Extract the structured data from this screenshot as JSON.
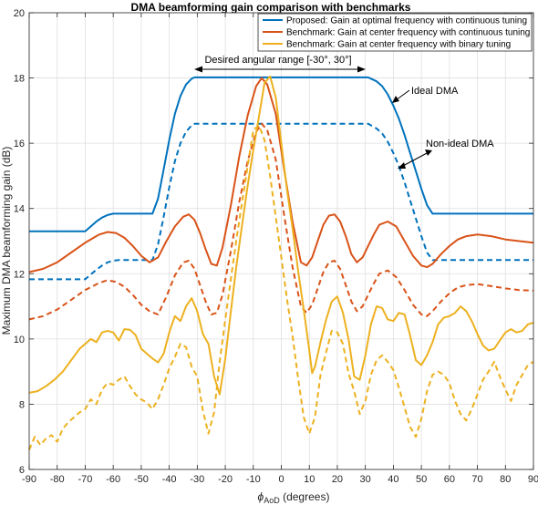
{
  "chart_data": {
    "type": "line",
    "title": "DMA beamforming gain comparison with benchmarks",
    "xlabel_main": "ϕ",
    "xlabel_sub": "AoD",
    "xlabel_unit": " (degrees)",
    "ylabel": "Maximum DMA beamforming gain (dB)",
    "xlim": [
      -90,
      90
    ],
    "ylim": [
      6,
      20
    ],
    "xticks": [
      -90,
      -80,
      -70,
      -60,
      -50,
      -40,
      -30,
      -20,
      -10,
      0,
      10,
      20,
      30,
      40,
      50,
      60,
      70,
      80,
      90
    ],
    "yticks": [
      6,
      8,
      10,
      12,
      14,
      16,
      18,
      20
    ],
    "grid": true,
    "legend_position": "top-right",
    "legend": [
      {
        "label": "Proposed: Gain at optimal frequency with continuous tuning",
        "color": "#0072BD"
      },
      {
        "label": "Benchmark: Gain at center frequency with continuous tuning",
        "color": "#D95319"
      },
      {
        "label": "Benchmark: Gain at center frequency with binary tuning",
        "color": "#EDB120"
      }
    ],
    "annotations": {
      "range": "Desired angular range [-30°, 30°]",
      "ideal": "Ideal DMA",
      "nonideal": "Non-ideal DMA"
    },
    "series": [
      {
        "color": "#0072BD",
        "style": "solid",
        "x": [
          -90,
          -70,
          -68,
          -66,
          -64,
          -62,
          -60,
          -58,
          -46,
          -44,
          -42,
          -40,
          -38,
          -36,
          -34,
          -32,
          -31,
          31,
          32,
          34,
          36,
          38,
          40,
          42,
          44,
          46,
          48,
          50,
          52,
          54,
          90
        ],
        "y": [
          13.3,
          13.3,
          13.45,
          13.6,
          13.72,
          13.8,
          13.84,
          13.84,
          13.84,
          14.3,
          15.2,
          16.1,
          16.9,
          17.45,
          17.8,
          17.98,
          18.02,
          18.02,
          17.98,
          17.9,
          17.75,
          17.5,
          17.15,
          16.75,
          16.25,
          15.7,
          15.15,
          14.6,
          14.1,
          13.84,
          13.84
        ]
      },
      {
        "color": "#0072BD",
        "style": "dashed",
        "x": [
          -90,
          -70,
          -68,
          -66,
          -64,
          -62,
          -60,
          -58,
          -46,
          -44,
          -42,
          -40,
          -38,
          -36,
          -34,
          -32,
          -31,
          31,
          32,
          34,
          36,
          38,
          40,
          42,
          44,
          46,
          48,
          50,
          52,
          54,
          90
        ],
        "y": [
          11.83,
          11.83,
          11.98,
          12.12,
          12.25,
          12.35,
          12.4,
          12.42,
          12.42,
          12.9,
          13.75,
          14.65,
          15.45,
          16.0,
          16.35,
          16.55,
          16.6,
          16.6,
          16.55,
          16.45,
          16.3,
          16.05,
          15.7,
          15.3,
          14.8,
          14.25,
          13.7,
          13.15,
          12.65,
          12.42,
          12.42
        ]
      },
      {
        "color": "#D95319",
        "style": "solid",
        "x": [
          -90,
          -85,
          -80,
          -75,
          -70,
          -65,
          -62,
          -59,
          -56,
          -53,
          -50,
          -47,
          -44,
          -41,
          -38,
          -35,
          -33,
          -31,
          -29,
          -27,
          -25,
          -23,
          -21,
          -18,
          -15,
          -12,
          -9,
          -7,
          -5,
          -2,
          1,
          4,
          7,
          9,
          11,
          13,
          15,
          17,
          19,
          21,
          23,
          25,
          27,
          29,
          31,
          33,
          35,
          38,
          41,
          44,
          47,
          50,
          52,
          54,
          57,
          60,
          63,
          66,
          70,
          75,
          80,
          85,
          90
        ],
        "y": [
          12.05,
          12.15,
          12.35,
          12.65,
          12.95,
          13.2,
          13.28,
          13.25,
          13.1,
          12.85,
          12.55,
          12.35,
          12.5,
          13.0,
          13.45,
          13.75,
          13.82,
          13.65,
          13.25,
          12.75,
          12.3,
          12.25,
          12.8,
          14.1,
          15.6,
          16.85,
          17.75,
          18.0,
          17.8,
          16.9,
          15.2,
          13.6,
          12.35,
          12.25,
          12.5,
          13.0,
          13.5,
          13.78,
          13.82,
          13.6,
          13.15,
          12.6,
          12.35,
          12.5,
          12.85,
          13.2,
          13.5,
          13.6,
          13.45,
          13.0,
          12.55,
          12.25,
          12.2,
          12.3,
          12.6,
          12.85,
          13.05,
          13.15,
          13.2,
          13.15,
          13.05,
          13.0,
          12.95
        ]
      },
      {
        "color": "#D95319",
        "style": "dashed",
        "x": [
          -90,
          -85,
          -80,
          -75,
          -70,
          -65,
          -62,
          -59,
          -56,
          -53,
          -50,
          -47,
          -44,
          -41,
          -38,
          -35,
          -33,
          -31,
          -29,
          -27,
          -25,
          -23,
          -21,
          -18,
          -15,
          -12,
          -9,
          -7,
          -5,
          -2,
          1,
          4,
          7,
          9,
          11,
          13,
          15,
          17,
          19,
          21,
          23,
          25,
          27,
          29,
          31,
          33,
          35,
          38,
          41,
          44,
          47,
          50,
          52,
          54,
          57,
          60,
          63,
          66,
          70,
          75,
          80,
          85,
          90
        ],
        "y": [
          10.6,
          10.7,
          10.9,
          11.2,
          11.5,
          11.72,
          11.8,
          11.75,
          11.6,
          11.35,
          11.05,
          10.85,
          10.75,
          11.3,
          11.95,
          12.35,
          12.4,
          12.15,
          11.65,
          11.15,
          10.75,
          10.8,
          11.35,
          12.7,
          14.2,
          15.45,
          16.35,
          16.6,
          16.4,
          15.5,
          13.8,
          12.2,
          11.0,
          10.8,
          11.05,
          11.55,
          12.05,
          12.35,
          12.4,
          12.15,
          11.65,
          11.15,
          10.85,
          11.0,
          11.35,
          11.7,
          12.0,
          12.1,
          11.9,
          11.5,
          11.05,
          10.75,
          10.7,
          10.85,
          11.15,
          11.4,
          11.58,
          11.65,
          11.68,
          11.62,
          11.55,
          11.5,
          11.48
        ]
      },
      {
        "color": "#EDB120",
        "style": "solid",
        "x": [
          -90,
          -87,
          -84,
          -81,
          -78,
          -75,
          -72,
          -70,
          -68,
          -66,
          -64,
          -62,
          -60,
          -58,
          -56,
          -54,
          -52,
          -50,
          -48,
          -46,
          -44,
          -42,
          -40,
          -38,
          -36,
          -34,
          -32,
          -30,
          -28,
          -26,
          -24,
          -22,
          -20,
          -18,
          -16,
          -14,
          -12,
          -10,
          -8,
          -6,
          -4,
          -2,
          0,
          2,
          4,
          6,
          8,
          10,
          11,
          12,
          14,
          16,
          18,
          20,
          22,
          24,
          26,
          28,
          30,
          32,
          34,
          36,
          38,
          40,
          42,
          44,
          46,
          48,
          50,
          52,
          54,
          56,
          58,
          60,
          62,
          64,
          66,
          68,
          70,
          72,
          74,
          76,
          78,
          80,
          82,
          84,
          86,
          88,
          90
        ],
        "y": [
          8.35,
          8.4,
          8.55,
          8.75,
          9.0,
          9.35,
          9.7,
          9.85,
          10.0,
          9.9,
          10.2,
          10.25,
          10.2,
          9.95,
          10.3,
          10.28,
          10.12,
          9.7,
          9.55,
          9.4,
          9.28,
          9.55,
          10.2,
          10.7,
          10.55,
          11.0,
          11.25,
          10.85,
          10.15,
          9.85,
          8.85,
          8.3,
          9.4,
          10.85,
          12.25,
          13.5,
          14.7,
          15.8,
          16.8,
          17.85,
          18.05,
          17.4,
          16.0,
          14.6,
          13.4,
          12.1,
          10.9,
          9.65,
          8.95,
          9.15,
          9.9,
          10.6,
          11.15,
          11.3,
          10.8,
          10.0,
          8.85,
          8.75,
          9.5,
          10.45,
          11.0,
          10.95,
          10.6,
          10.55,
          10.8,
          10.75,
          10.1,
          9.35,
          9.2,
          9.5,
          9.9,
          10.45,
          10.65,
          10.7,
          10.8,
          11.0,
          10.85,
          10.55,
          10.15,
          9.8,
          9.65,
          9.7,
          9.95,
          10.2,
          10.3,
          10.2,
          10.25,
          10.45,
          10.5
        ]
      },
      {
        "color": "#EDB120",
        "style": "dashed",
        "x": [
          -90,
          -88,
          -86,
          -84,
          -82,
          -80,
          -78,
          -76,
          -74,
          -72,
          -70,
          -68,
          -66,
          -64,
          -62,
          -60,
          -58,
          -56,
          -54,
          -52,
          -50,
          -48,
          -46,
          -44,
          -42,
          -40,
          -38,
          -36,
          -34,
          -32,
          -30,
          -28,
          -26,
          -24,
          -22,
          -20,
          -18,
          -16,
          -14,
          -12,
          -10,
          -8,
          -6,
          -4,
          -2,
          0,
          2,
          4,
          6,
          8,
          10,
          12,
          14,
          16,
          18,
          20,
          22,
          24,
          26,
          28,
          30,
          32,
          34,
          36,
          38,
          40,
          42,
          44,
          46,
          48,
          50,
          52,
          54,
          56,
          58,
          60,
          62,
          64,
          66,
          68,
          70,
          72,
          74,
          76,
          78,
          80,
          82,
          84,
          86,
          88,
          90
        ],
        "y": [
          6.6,
          7.0,
          6.75,
          6.95,
          7.05,
          6.85,
          7.25,
          7.45,
          7.6,
          7.75,
          7.85,
          8.15,
          8.0,
          8.45,
          8.65,
          8.6,
          8.75,
          8.85,
          8.55,
          8.3,
          8.15,
          8.05,
          7.85,
          8.15,
          8.6,
          9.1,
          9.45,
          9.85,
          9.75,
          9.15,
          8.85,
          7.8,
          7.1,
          7.75,
          9.3,
          10.6,
          11.85,
          13.05,
          14.2,
          15.3,
          16.4,
          16.55,
          16.1,
          15.0,
          13.75,
          12.5,
          11.25,
          10.1,
          8.8,
          7.6,
          7.1,
          7.6,
          8.9,
          9.6,
          10.25,
          10.2,
          9.85,
          8.95,
          8.4,
          7.7,
          8.1,
          8.9,
          9.35,
          9.5,
          9.3,
          9.05,
          8.5,
          7.9,
          7.3,
          7.0,
          7.55,
          8.4,
          8.9,
          9.0,
          8.9,
          8.65,
          8.1,
          7.7,
          7.5,
          7.85,
          8.3,
          8.75,
          9.0,
          9.3,
          8.85,
          8.45,
          8.1,
          8.6,
          8.9,
          9.2,
          9.3
        ]
      }
    ]
  }
}
